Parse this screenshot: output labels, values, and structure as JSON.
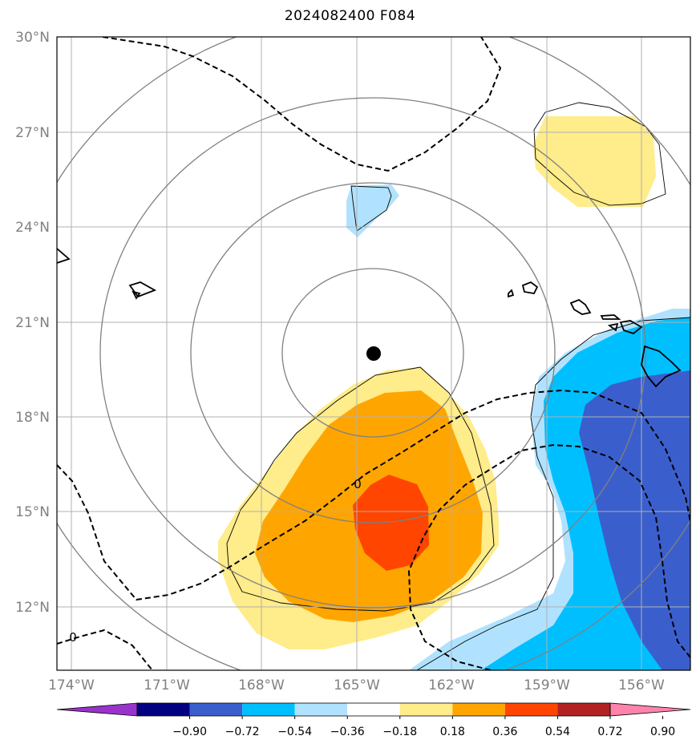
{
  "title": "2024082400 F084",
  "lat_labels": [
    "30°N",
    "27°N",
    "24°N",
    "21°N",
    "18°N",
    "15°N",
    "12°N"
  ],
  "lon_labels": [
    "174°W",
    "171°W",
    "168°W",
    "165°W",
    "162°W",
    "159°W",
    "156°W"
  ],
  "contour_label": "0",
  "colorbar": {
    "colors": [
      "#9933cc",
      "#000080",
      "#3a5fcd",
      "#00bfff",
      "#b0e2ff",
      "#ffffff",
      "#ffec8b",
      "#ffa500",
      "#ff4500",
      "#b22222",
      "#ff83aa"
    ],
    "tick_labels": [
      "−0.90",
      "−0.72",
      "−0.54",
      "−0.36",
      "−0.18",
      "0.18",
      "0.36",
      "0.54",
      "0.72",
      "0.90"
    ]
  },
  "storm_center": {
    "lat": 20.0,
    "lon": -164.5
  }
}
